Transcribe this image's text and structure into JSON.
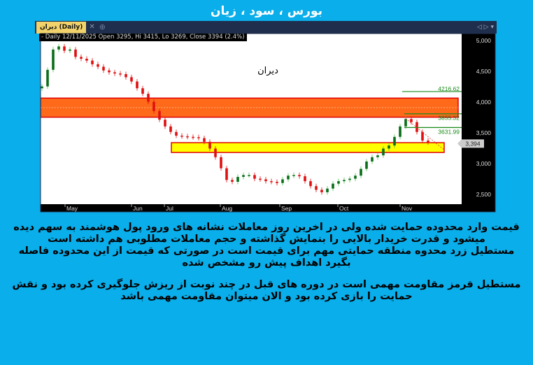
{
  "page_title": "بورس ، سود ، زیان",
  "tab": {
    "label": "دیران (Daily)",
    "close_icon": "close-icon",
    "add_icon": "plus-circle-icon",
    "nav_icons": [
      "triangle-left-icon",
      "triangle-right-icon",
      "chevron-down-icon"
    ]
  },
  "info_bar": "- Daily 12/11/2025 Open 3295, Hi 3415, Lo 3269, Close 3394 (2.4%)",
  "chart_label": "دیران",
  "chart_data": {
    "type": "candlestick",
    "symbol": "دیران",
    "timeframe": "Daily",
    "x_tick_labels": [
      "May",
      "Jun",
      "Jul",
      "Aug",
      "Sep",
      "Oct",
      "Nov"
    ],
    "y_tick_labels": [
      "5,000",
      "4,500",
      "4,000",
      "3,500",
      "3,000",
      "2,500"
    ],
    "ylim": [
      2450,
      5150
    ],
    "grid": false,
    "closes_approx": [
      4300,
      4570,
      4900,
      4950,
      4880,
      4900,
      4780,
      4750,
      4720,
      4660,
      4620,
      4560,
      4530,
      4510,
      4500,
      4450,
      4380,
      4270,
      4180,
      4050,
      3900,
      3760,
      3650,
      3560,
      3500,
      3490,
      3480,
      3475,
      3460,
      3400,
      3290,
      3150,
      2970,
      2780,
      2750,
      2830,
      2860,
      2860,
      2800,
      2790,
      2760,
      2750,
      2730,
      2790,
      2850,
      2860,
      2840,
      2760,
      2680,
      2620,
      2580,
      2640,
      2720,
      2760,
      2780,
      2800,
      2850,
      2960,
      3080,
      3150,
      3180,
      3290,
      3340,
      3480,
      3650,
      3770,
      3720,
      3560,
      3420,
      3394
    ],
    "last_close_label": "3,394",
    "resistance_zone": {
      "top": 4110,
      "bottom": 3800,
      "color": "#ff6a1a",
      "border": "#e00000"
    },
    "support_zone": {
      "top": 3386,
      "bottom": 3227,
      "color": "#ffff00",
      "border": "#e00000"
    },
    "levels": [
      {
        "value": 4216.62,
        "label": "4216.62"
      },
      {
        "value": 3855.32,
        "label": "3855.32"
      },
      {
        "value": 3631.99,
        "label": "3631.99"
      }
    ],
    "colors": {
      "up": "#0a6e1a",
      "down": "#e01010",
      "level": "#1a8a1a",
      "axis_bg": "#000000"
    }
  },
  "paragraphs": [
    [
      "قیمت وارد محدوده حمایت شده ولی در اخرین روز معاملات نشانه های ورود پول هوشمند به سهم دیده",
      "میشود و قدرت خریدار بالایی را بنمایش گذاشته و حجم معاملات مطلوبی هم داشته است",
      "مستطیل زرد  محدوه منطقه حمایتی مهم برای قیمت است در صورتی که قیمت از این محدوده فاصله",
      "بگیرد اهداف پیش رو مشخص شده"
    ],
    [
      "مستطیل قرمز مقاومت مهمی است در دوره های قبل در چند نوبت از ریزش جلوگیری کرده بود و نقش",
      "حمایت را بازی کرده بود و الان میتوان مقاومت مهمی باشد"
    ]
  ]
}
